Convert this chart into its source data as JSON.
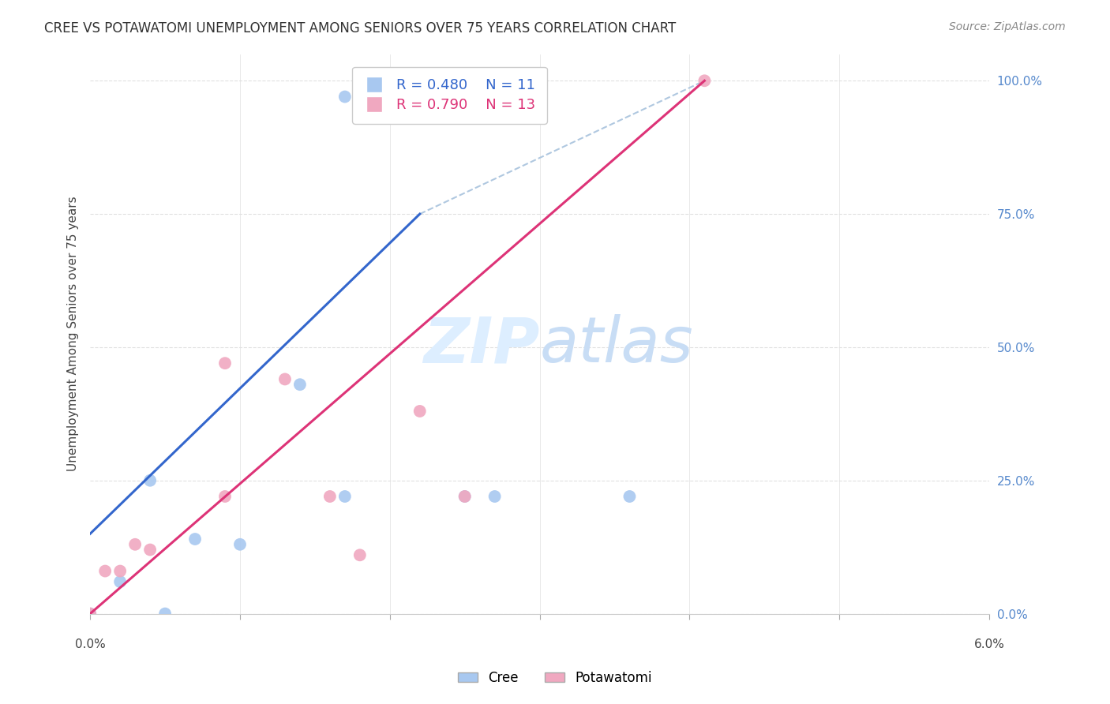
{
  "title": "CREE VS POTAWATOMI UNEMPLOYMENT AMONG SENIORS OVER 75 YEARS CORRELATION CHART",
  "source": "Source: ZipAtlas.com",
  "ylabel": "Unemployment Among Seniors over 75 years",
  "ylabel_ticks": [
    "0.0%",
    "25.0%",
    "50.0%",
    "75.0%",
    "100.0%"
  ],
  "cree_R": 0.48,
  "cree_N": 11,
  "potawatomi_R": 0.79,
  "potawatomi_N": 13,
  "cree_color": "#a8c8f0",
  "potawatomi_color": "#f0a8c0",
  "cree_line_color": "#3366cc",
  "potawatomi_line_color": "#dd3377",
  "ref_line_color": "#b0c8e0",
  "cree_points": [
    [
      0.0,
      0.0
    ],
    [
      0.002,
      0.06
    ],
    [
      0.004,
      0.25
    ],
    [
      0.005,
      0.0
    ],
    [
      0.007,
      0.14
    ],
    [
      0.01,
      0.13
    ],
    [
      0.014,
      0.43
    ],
    [
      0.017,
      0.22
    ],
    [
      0.025,
      0.22
    ],
    [
      0.027,
      0.22
    ],
    [
      0.036,
      0.22
    ]
  ],
  "potawatomi_points": [
    [
      0.0,
      0.0
    ],
    [
      0.001,
      0.08
    ],
    [
      0.002,
      0.08
    ],
    [
      0.003,
      0.13
    ],
    [
      0.004,
      0.12
    ],
    [
      0.009,
      0.22
    ],
    [
      0.009,
      0.47
    ],
    [
      0.013,
      0.44
    ],
    [
      0.016,
      0.22
    ],
    [
      0.018,
      0.11
    ],
    [
      0.022,
      0.38
    ],
    [
      0.025,
      0.22
    ],
    [
      0.041,
      1.0
    ]
  ],
  "cree_outlier": [
    0.017,
    0.97
  ],
  "cree_line": [
    0.0,
    0.15,
    0.022,
    0.75
  ],
  "potawatomi_line": [
    0.0,
    0.0,
    0.041,
    1.0
  ],
  "ref_line": [
    0.022,
    0.75,
    0.041,
    1.0
  ],
  "xlim": [
    0.0,
    0.06
  ],
  "ylim": [
    0.0,
    1.05
  ],
  "background_color": "#ffffff",
  "grid_color": "#e0e0e0",
  "watermark_color": "#ddeeff",
  "legend_fontsize": 13,
  "title_fontsize": 12,
  "marker_size": 130
}
